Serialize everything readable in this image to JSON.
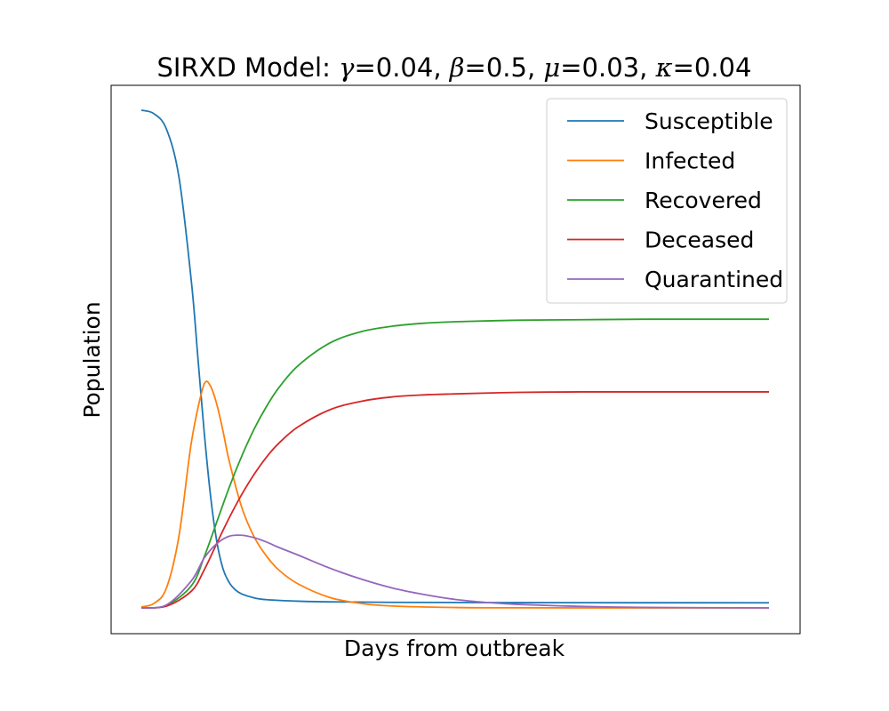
{
  "chart_data": {
    "type": "line",
    "title": {
      "prefix": "SIRXD Model: ",
      "params": [
        {
          "symbol": "γ",
          "value": "=0.04",
          "sep": ", "
        },
        {
          "symbol": "β",
          "value": "=0.5",
          "sep": ", "
        },
        {
          "symbol": "μ",
          "value": "=0.03",
          "sep": ", "
        },
        {
          "symbol": "κ",
          "value": "=0.04",
          "sep": ""
        }
      ]
    },
    "xlabel": "Days from outbreak",
    "ylabel": "Population",
    "show_ticks": false,
    "grid": false,
    "legend_position": "top-right",
    "x_range": [
      0,
      100
    ],
    "y_range": [
      0,
      100
    ],
    "series": [
      {
        "name": "Susceptible",
        "color": "#1f77b4",
        "x": [
          0,
          2,
          4,
          6,
          8,
          9,
          10,
          11,
          12,
          13,
          14,
          15,
          16,
          18,
          20,
          25,
          30,
          40,
          60,
          80,
          100
        ],
        "y": [
          100,
          99.3,
          96.2,
          86.5,
          65.2,
          50.4,
          35.5,
          22.8,
          13.5,
          7.9,
          5.1,
          3.6,
          2.8,
          2.0,
          1.65,
          1.35,
          1.22,
          1.12,
          1.06,
          1.04,
          1.03
        ]
      },
      {
        "name": "Infected",
        "color": "#ff7f0e",
        "x": [
          0,
          2,
          4,
          6,
          8,
          10,
          11,
          12,
          13,
          14,
          16,
          18,
          20,
          22,
          25,
          30,
          35,
          40,
          50,
          60,
          80,
          100
        ],
        "y": [
          0.2,
          0.9,
          4.0,
          14.5,
          33.5,
          45.0,
          44.6,
          41.0,
          35.6,
          29.5,
          20.2,
          14.2,
          10.3,
          7.5,
          4.8,
          2.1,
          0.9,
          0.38,
          0.08,
          0.02,
          0.0,
          0.0
        ]
      },
      {
        "name": "Recovered",
        "color": "#2ca02c",
        "x": [
          0,
          4,
          8,
          10,
          12,
          14,
          16,
          18,
          20,
          22,
          25,
          30,
          35,
          40,
          45,
          50,
          60,
          70,
          80,
          100
        ],
        "y": [
          0,
          0.5,
          4.5,
          10.2,
          17.2,
          24.2,
          30.5,
          36.0,
          40.6,
          44.4,
          48.7,
          53.2,
          55.5,
          56.6,
          57.2,
          57.5,
          57.8,
          57.9,
          58.0,
          58.0
        ]
      },
      {
        "name": "Deceased",
        "color": "#d62728",
        "x": [
          0,
          4,
          8,
          10,
          12,
          14,
          16,
          18,
          20,
          22,
          25,
          30,
          35,
          40,
          45,
          50,
          60,
          70,
          80,
          100
        ],
        "y": [
          0,
          0.35,
          3.4,
          7.6,
          12.9,
          18.1,
          22.8,
          26.9,
          30.4,
          33.2,
          36.4,
          39.8,
          41.5,
          42.4,
          42.8,
          43.0,
          43.3,
          43.4,
          43.4,
          43.4
        ]
      },
      {
        "name": "Quarantined",
        "color": "#9467bd",
        "x": [
          0,
          4,
          8,
          10,
          12,
          14,
          16,
          18,
          20,
          22,
          25,
          30,
          35,
          40,
          45,
          50,
          55,
          60,
          70,
          80,
          100
        ],
        "y": [
          0,
          0.6,
          5.5,
          10.0,
          12.9,
          14.4,
          14.6,
          14.1,
          13.2,
          12.1,
          10.6,
          8.0,
          5.8,
          4.0,
          2.7,
          1.7,
          1.1,
          0.7,
          0.3,
          0.1,
          0.0
        ]
      }
    ]
  }
}
